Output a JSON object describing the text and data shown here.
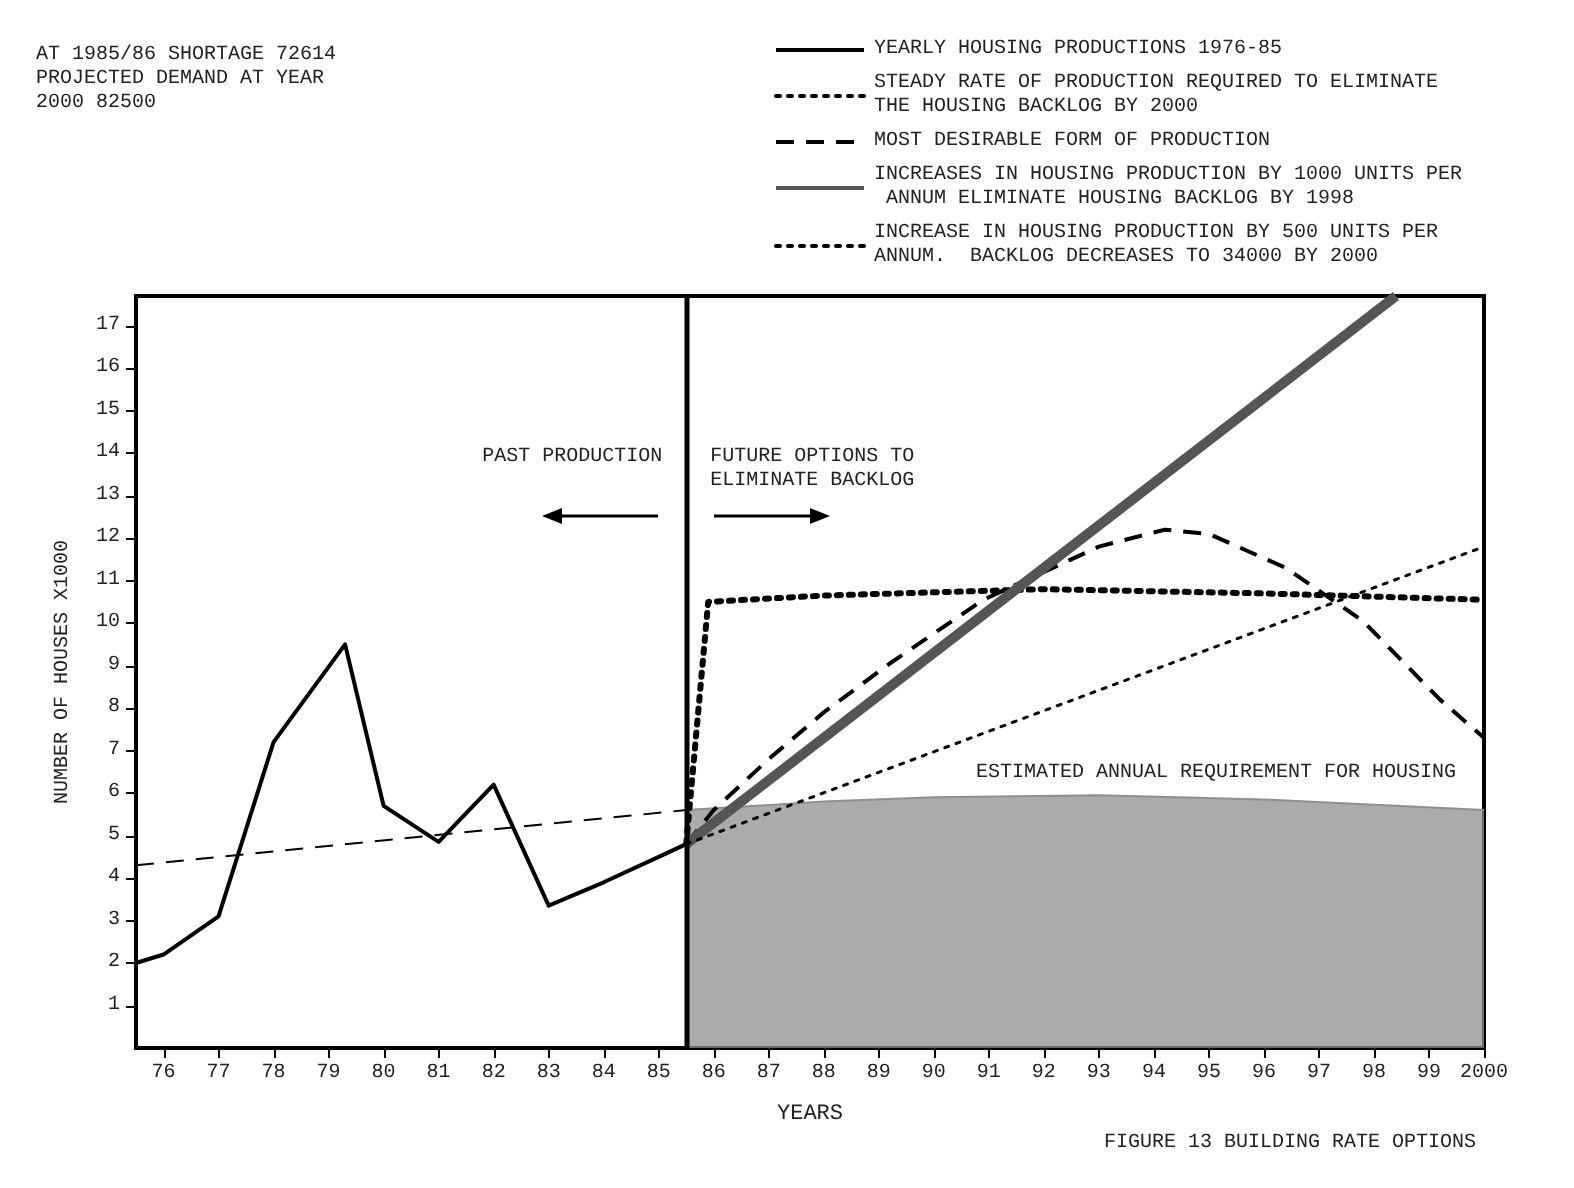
{
  "chart_data": {
    "type": "line",
    "xlabel": "YEARS",
    "ylabel": "NUMBER OF HOUSES X1000",
    "xlim": [
      1975.5,
      2000
    ],
    "xticks": [
      {
        "value": 1976,
        "label": "76"
      },
      {
        "value": 1977,
        "label": "77"
      },
      {
        "value": 1978,
        "label": "78"
      },
      {
        "value": 1979,
        "label": "79"
      },
      {
        "value": 1980,
        "label": "80"
      },
      {
        "value": 1981,
        "label": "81"
      },
      {
        "value": 1982,
        "label": "82"
      },
      {
        "value": 1983,
        "label": "83"
      },
      {
        "value": 1984,
        "label": "84"
      },
      {
        "value": 1985,
        "label": "85"
      },
      {
        "value": 1986,
        "label": "86"
      },
      {
        "value": 1987,
        "label": "87"
      },
      {
        "value": 1988,
        "label": "88"
      },
      {
        "value": 1989,
        "label": "89"
      },
      {
        "value": 1990,
        "label": "90"
      },
      {
        "value": 1991,
        "label": "91"
      },
      {
        "value": 1992,
        "label": "92"
      },
      {
        "value": 1993,
        "label": "93"
      },
      {
        "value": 1994,
        "label": "94"
      },
      {
        "value": 1995,
        "label": "95"
      },
      {
        "value": 1996,
        "label": "96"
      },
      {
        "value": 1997,
        "label": "97"
      },
      {
        "value": 1998,
        "label": "98"
      },
      {
        "value": 1999,
        "label": "99"
      },
      2000
    ],
    "ylim": [
      0,
      17.7
    ],
    "yticks": [
      1,
      2,
      3,
      4,
      5,
      6,
      7,
      8,
      9,
      10,
      11,
      12,
      13,
      14,
      15,
      16,
      17
    ],
    "legend": "top right",
    "marker": "none",
    "grid": false,
    "series": [
      {
        "name": "YEARLY HOUSING PRODUCTIONS 1976-85",
        "color": "#000000",
        "line_style": "solid",
        "x": [
          1975.5,
          1976,
          1977,
          1978,
          1979.3,
          1980,
          1981,
          1982,
          1983,
          1984,
          1985,
          1985.5
        ],
        "values": [
          2.0,
          2.2,
          3.1,
          7.2,
          9.5,
          5.7,
          4.85,
          6.2,
          3.35,
          3.9,
          4.5,
          4.8
        ]
      },
      {
        "name": "STEADY RATE OF PRODUCTION REQUIRED TO ELIMINATE THE HOUSING BACKLOG BY 2000",
        "color": "#000000",
        "line_style": "dotted",
        "x": [
          1985.5,
          1985.9,
          1988,
          1992,
          1996,
          2000
        ],
        "values": [
          4.8,
          10.5,
          10.65,
          10.8,
          10.7,
          10.55
        ]
      },
      {
        "name": "MOST DESIRABLE FORM OF PRODUCTION",
        "color": "#000000",
        "line_style": "dashed",
        "x": [
          1985.5,
          1986,
          1987,
          1988,
          1989.2,
          1990.9,
          1993,
          1994.2,
          1995,
          1996.4,
          1997.8,
          1999.2,
          2000
        ],
        "values": [
          4.8,
          5.6,
          6.8,
          7.9,
          9.05,
          10.55,
          11.8,
          12.2,
          12.1,
          11.3,
          10.05,
          8.2,
          7.3
        ]
      },
      {
        "name": "INCREASES IN HOUSING PRODUCTION BY 1000 UNITS PER ANNUM ELIMINATE HOUSING BACKLOG BY 1998",
        "color": "#555555",
        "line_style": "solid",
        "x": [
          1985.5,
          1998.4
        ],
        "values": [
          4.8,
          17.7
        ]
      },
      {
        "name": "INCREASE IN HOUSING PRODUCTION BY 500 UNITS PER ANNUM.  BACKLOG DECREASES TO 34000 BY 2000",
        "color": "#000000",
        "line_style": "dotted",
        "x": [
          1985.5,
          2000
        ],
        "values": [
          4.8,
          11.8
        ]
      },
      {
        "color": "#000000",
        "line_style": "dashed",
        "x": [
          1975.5,
          1985.5
        ],
        "values": [
          4.3,
          5.6
        ]
      },
      {
        "type": "area",
        "color": "#8f8f8f",
        "line_style": "solid",
        "x": [
          1985.5,
          1988,
          1990,
          1993,
          1996,
          2000
        ],
        "values": [
          5.6,
          5.8,
          5.9,
          5.95,
          5.85,
          5.6
        ]
      }
    ],
    "ref_lines": [
      {
        "axis": "x",
        "value": 1985.5
      }
    ],
    "annotations": [
      "AT 1985/86 SHORTAGE 72614 PROJECTED DEMAND AT YEAR 2000 82500",
      "PAST PRODUCTION",
      "FUTURE OPTIONS TO ELIMINATE BACKLOG",
      "ESTIMATED ANNUAL REQUIREMENT FOR HOUSING",
      "FIGURE 13 BUILDING RATE OPTIONS"
    ]
  }
}
